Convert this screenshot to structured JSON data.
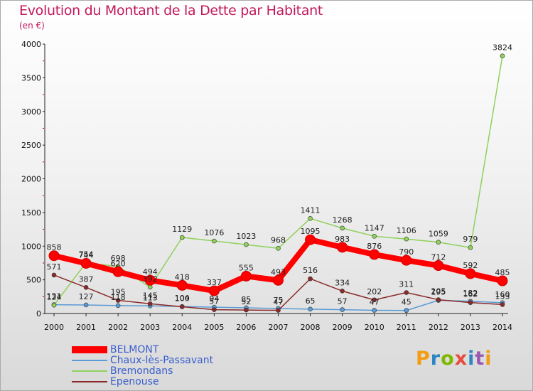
{
  "title": "Evolution du Montant de la Dette par Habitant",
  "subtitle": "(en €)",
  "logo": {
    "text": "Proxiti",
    "colors": [
      "#f39c12",
      "#2e86c1",
      "#7fb800",
      "#e74c3c",
      "#2e86c1",
      "#9b59b6",
      "#f39c12"
    ]
  },
  "chart_data": {
    "type": "line",
    "title": "Evolution du Montant de la Dette par Habitant",
    "ylabel": "(en €)",
    "x": [
      "2000",
      "2001",
      "2002",
      "2003",
      "2004",
      "2005",
      "2006",
      "2007",
      "2008",
      "2009",
      "2010",
      "2011",
      "2012",
      "2013",
      "2014"
    ],
    "ylim": [
      0,
      4000
    ],
    "yticks": [
      0,
      500,
      1000,
      1500,
      2000,
      2500,
      3000,
      3500,
      4000
    ],
    "grid": false,
    "legend_position": "bottom-left",
    "series": [
      {
        "name": "BELMONT",
        "color": "#ff0000",
        "values": [
          858,
          744,
          620,
          494,
          418,
          337,
          555,
          493,
          1095,
          983,
          876,
          790,
          712,
          592,
          485
        ]
      },
      {
        "name": "Chaux-lès-Passavant",
        "color": "#5b9bd5",
        "values": [
          131,
          127,
          118,
          113,
          104,
          94,
          85,
          75,
          65,
          57,
          47,
          45,
          195,
          182,
          160
        ]
      },
      {
        "name": "Bremondans",
        "color": "#8fd15c",
        "values": [
          124,
          754,
          698,
          392,
          1129,
          1076,
          1023,
          968,
          1411,
          1268,
          1147,
          1106,
          1059,
          979,
          3824
        ]
      },
      {
        "name": "Epenouse",
        "color": "#8b2a2a",
        "values": [
          571,
          387,
          195,
          145,
          100,
          57,
          52,
          47,
          516,
          334,
          202,
          311,
          205,
          162,
          133
        ]
      }
    ]
  }
}
